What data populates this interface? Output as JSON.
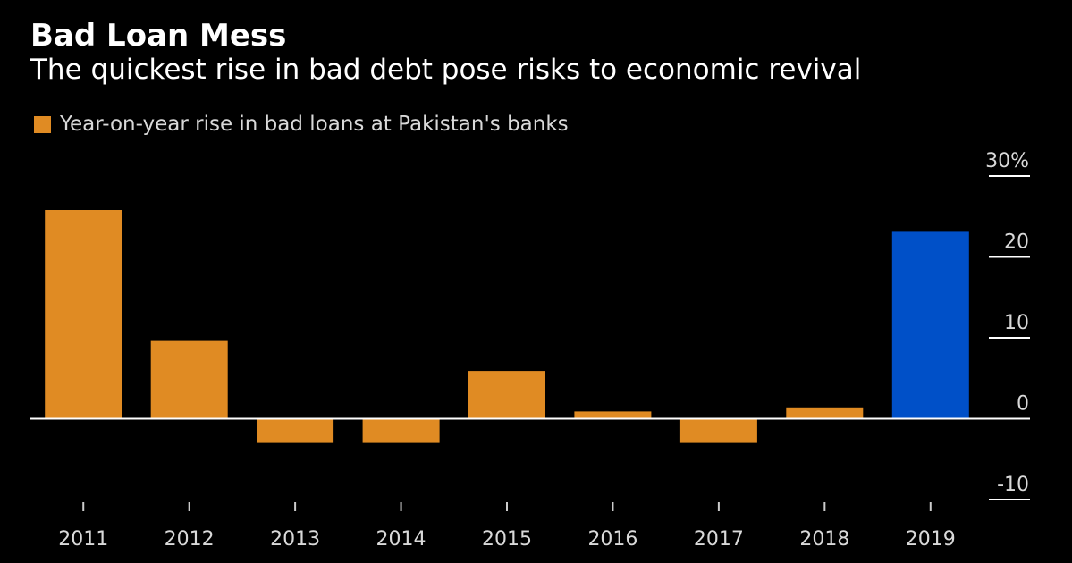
{
  "title": "Bad Loan Mess",
  "subtitle": "The quickest rise in bad debt pose risks to economic revival",
  "legend": {
    "label": "Year-on-year rise in bad loans at Pakistan's banks",
    "color": "#e08b23"
  },
  "colors": {
    "background": "#000000",
    "primary_bar": "#e08b23",
    "highlight_bar": "#0050c8",
    "text": "#ffffff",
    "axis_text": "#d9d9d9"
  },
  "chart_data": {
    "type": "bar",
    "categories": [
      "2011",
      "2012",
      "2013",
      "2014",
      "2015",
      "2016",
      "2017",
      "2018",
      "2019"
    ],
    "series": [
      {
        "name": "Year-on-year rise in bad loans at Pakistan's banks",
        "values": [
          25.8,
          9.6,
          -3.0,
          -3.0,
          5.9,
          0.9,
          -3.0,
          1.4,
          23.1
        ]
      }
    ],
    "highlight_index": 8,
    "ylim": [
      -10,
      30
    ],
    "yticks": [
      -10,
      0,
      10,
      20,
      30
    ],
    "ytick_labels": [
      "-10",
      "0",
      "10",
      "20",
      "30%"
    ],
    "y_axis_position": "right",
    "grid": false,
    "legend_position": "top-left"
  }
}
